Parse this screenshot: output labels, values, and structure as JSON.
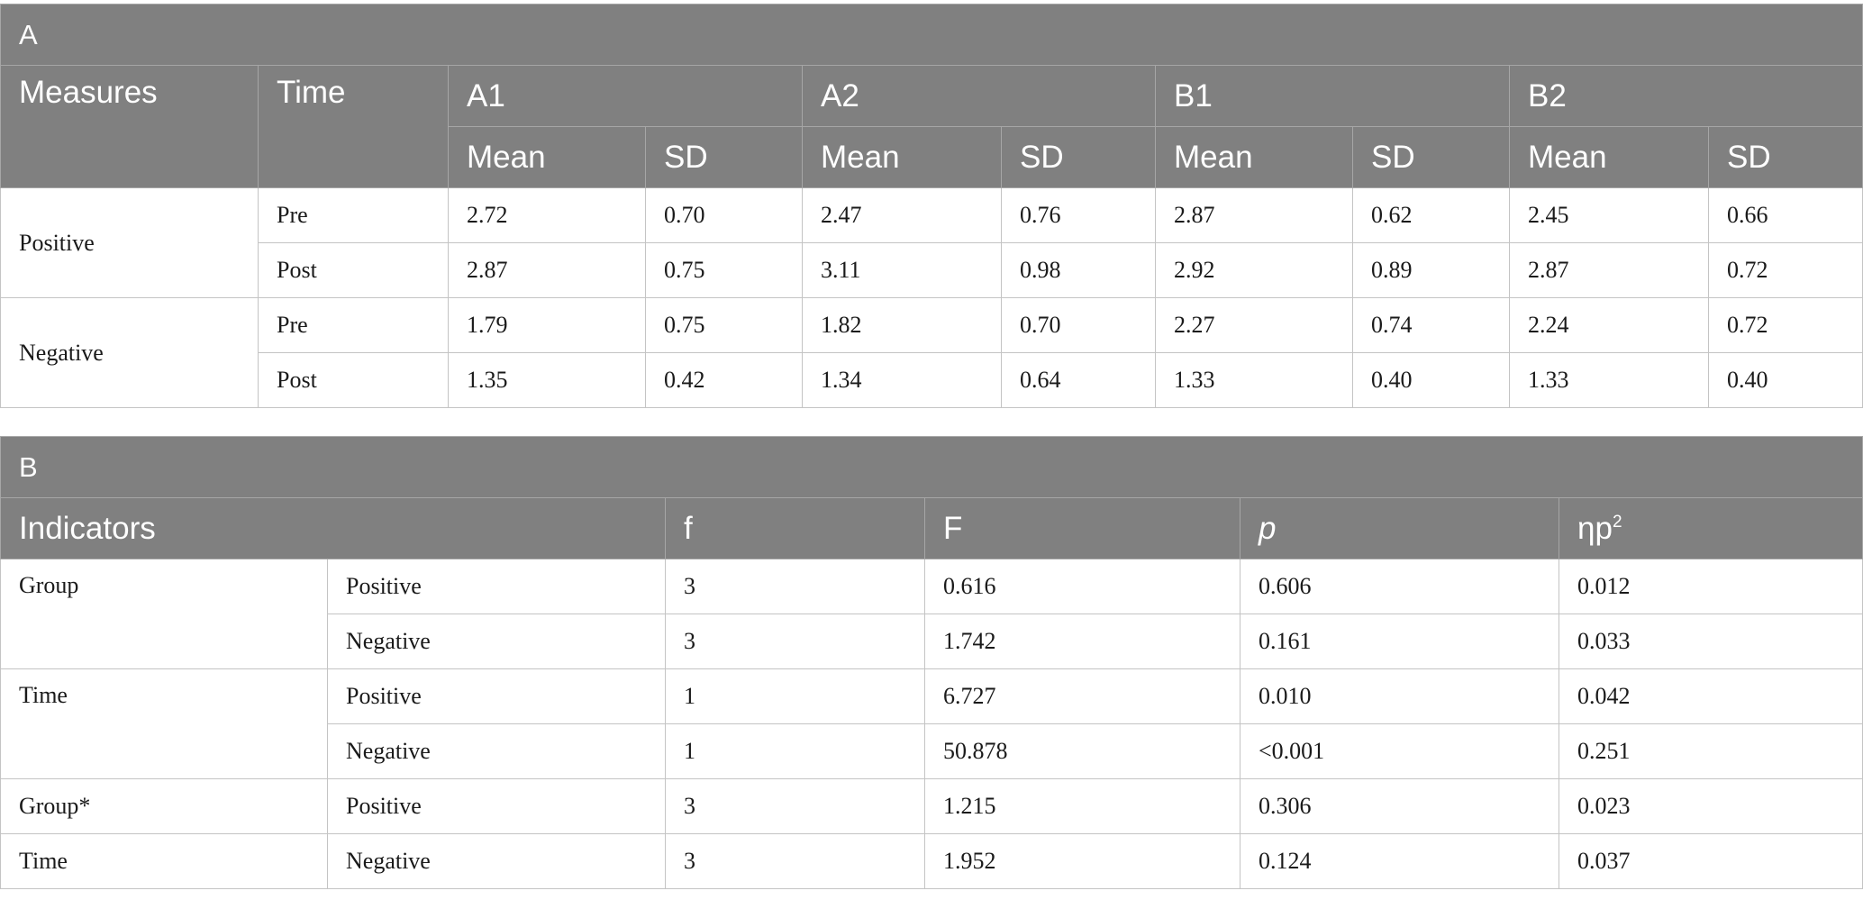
{
  "table_a": {
    "panel_label": "A",
    "headers": {
      "measures": "Measures",
      "time": "Time",
      "groups": [
        "A1",
        "A2",
        "B1",
        "B2"
      ],
      "mean": "Mean",
      "sd": "SD"
    },
    "rows": [
      {
        "measure": "Positive",
        "time": "Pre",
        "values": [
          "2.72",
          "0.70",
          "2.47",
          "0.76",
          "2.87",
          "0.62",
          "2.45",
          "0.66"
        ]
      },
      {
        "measure": "",
        "time": "Post",
        "values": [
          "2.87",
          "0.75",
          "3.11",
          "0.98",
          "2.92",
          "0.89",
          "2.87",
          "0.72"
        ]
      },
      {
        "measure": "Negative",
        "time": "Pre",
        "values": [
          "1.79",
          "0.75",
          "1.82",
          "0.70",
          "2.27",
          "0.74",
          "2.24",
          "0.72"
        ]
      },
      {
        "measure": "",
        "time": "Post",
        "values": [
          "1.35",
          "0.42",
          "1.34",
          "0.64",
          "1.33",
          "0.40",
          "1.33",
          "0.40"
        ]
      }
    ]
  },
  "table_b": {
    "panel_label": "B",
    "headers": {
      "indicators": "Indicators",
      "f_lower": "f",
      "f_upper": "F",
      "p": "p",
      "eta_base": "ηp",
      "eta_sup": "2"
    },
    "rows": [
      {
        "indicator": "Group",
        "measure": "Positive",
        "f": "3",
        "F": "0.616",
        "p": "0.606",
        "eta": "0.012"
      },
      {
        "indicator": "",
        "measure": "Negative",
        "f": "3",
        "F": "1.742",
        "p": "0.161",
        "eta": "0.033"
      },
      {
        "indicator": "Time",
        "measure": "Positive",
        "f": "1",
        "F": "6.727",
        "p": "0.010",
        "eta": "0.042"
      },
      {
        "indicator": "",
        "measure": "Negative",
        "f": "1",
        "F": "50.878",
        "p": "<0.001",
        "eta": "0.251"
      },
      {
        "indicator": "Group*",
        "measure": "Positive",
        "f": "3",
        "F": "1.215",
        "p": "0.306",
        "eta": "0.023"
      },
      {
        "indicator": "Time",
        "measure": "Negative",
        "f": "3",
        "F": "1.952",
        "p": "0.124",
        "eta": "0.037"
      }
    ]
  }
}
